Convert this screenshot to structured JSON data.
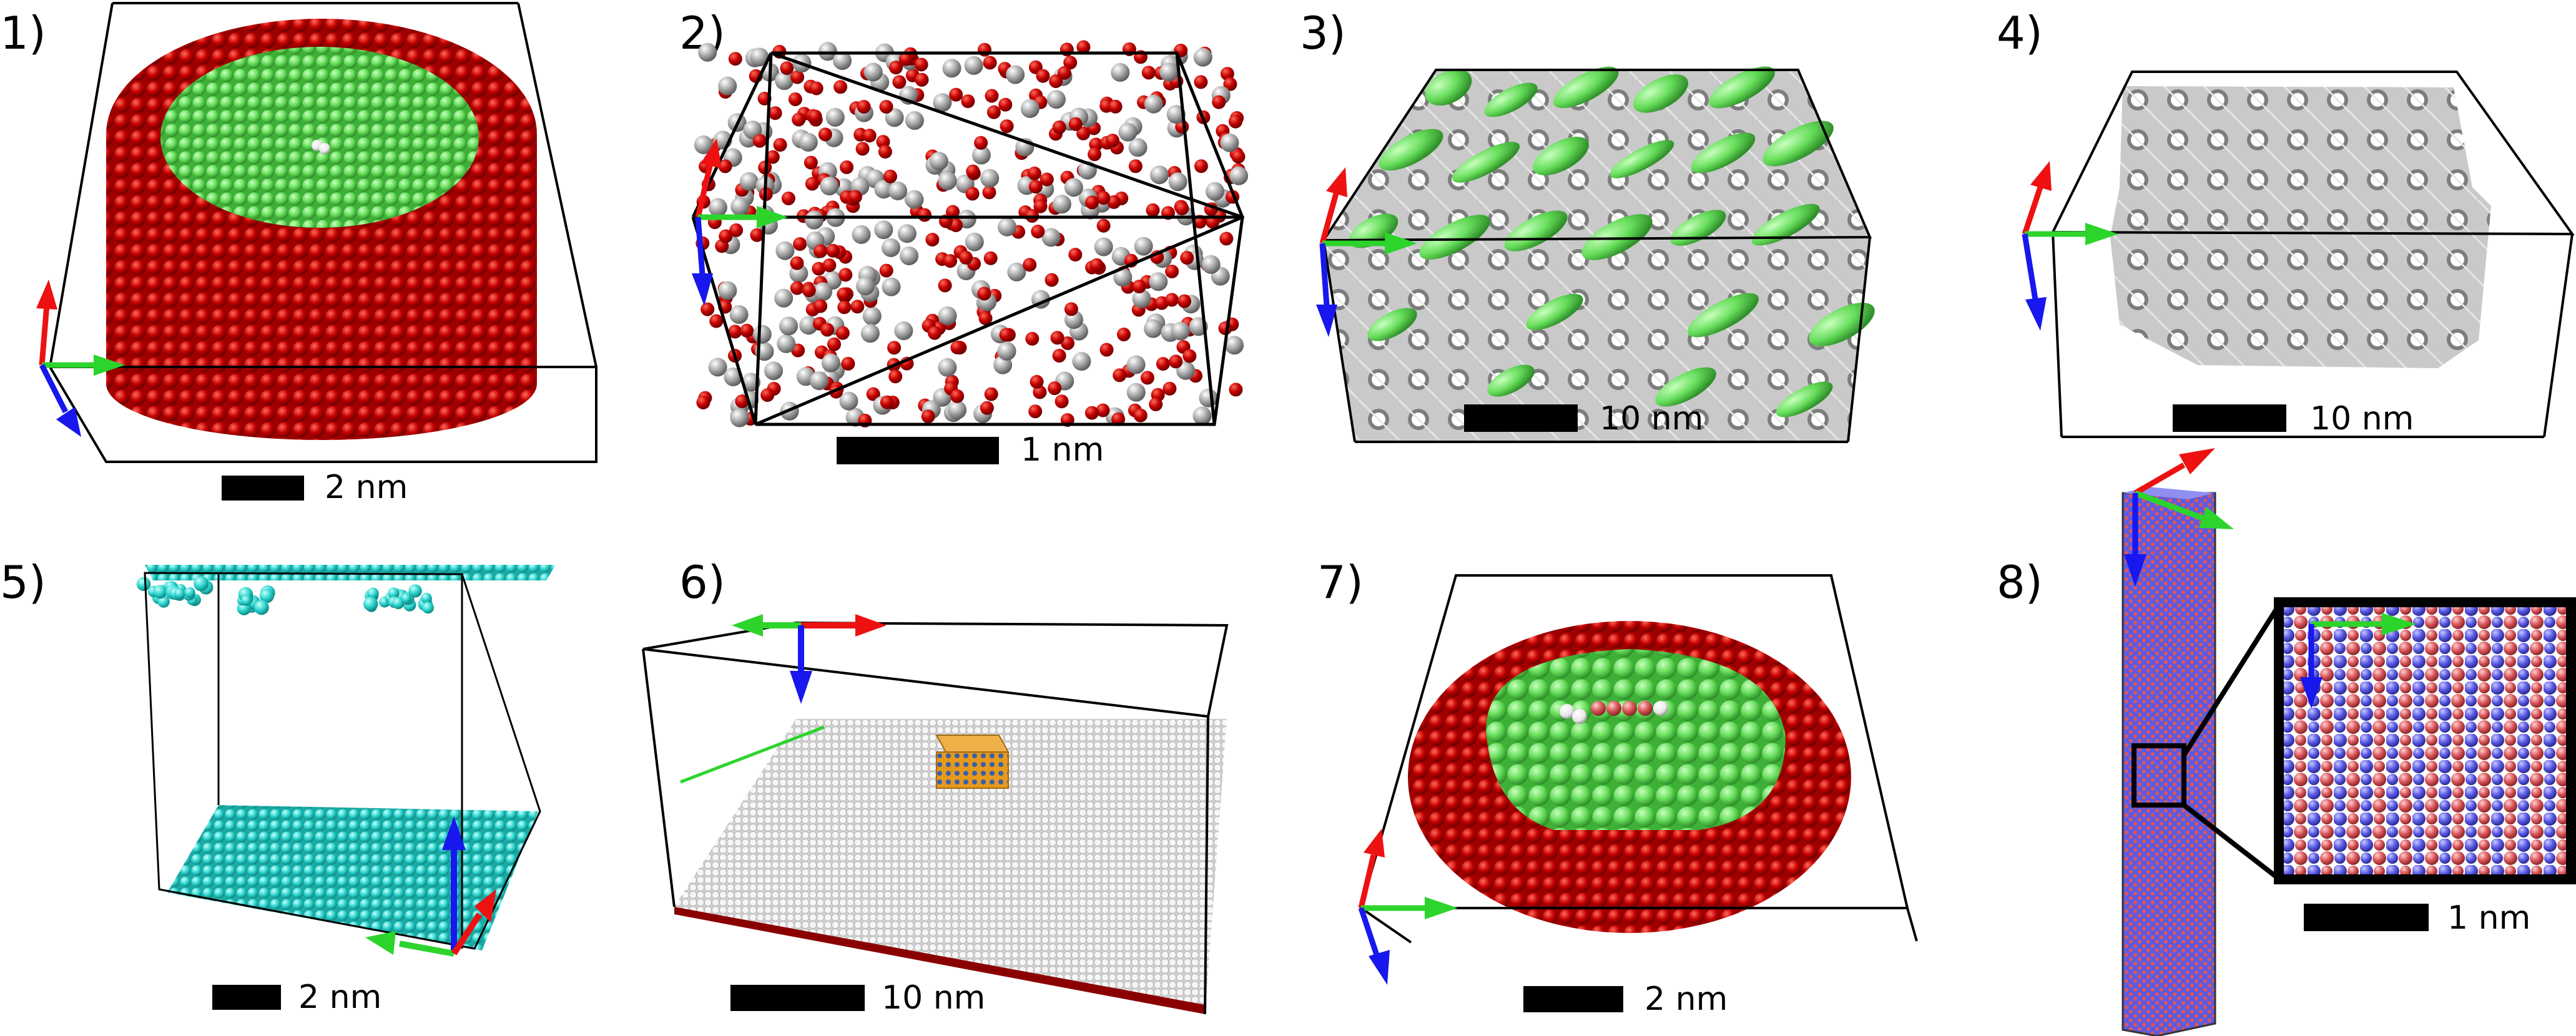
{
  "panels": [
    {
      "label": "1)",
      "scale": "2 nm"
    },
    {
      "label": "2)",
      "scale": "1 nm"
    },
    {
      "label": "3)",
      "scale": "10 nm"
    },
    {
      "label": "4)",
      "scale": "10 nm"
    },
    {
      "label": "5)",
      "scale": "2 nm"
    },
    {
      "label": "6)",
      "scale": "10 nm"
    },
    {
      "label": "7)",
      "scale": "2 nm"
    },
    {
      "label": "8)",
      "scale": "1 nm"
    }
  ],
  "colors": {
    "oxide": "#c00000",
    "metal": "#66dd5a",
    "hydrogen": "#dcdcdc",
    "grey": "#a6a6a6",
    "cyan": "#2fd6d0",
    "orange": "#e59a1e",
    "blue": "#5a5ae6",
    "axis_x": "#2cd42c",
    "axis_y": "#ee1111",
    "axis_z": "#1717ee"
  }
}
